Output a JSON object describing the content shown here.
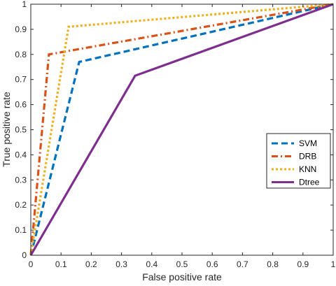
{
  "chart_data": {
    "type": "line",
    "xlabel": "False positive rate",
    "ylabel": "True positive rate",
    "xlim": [
      0,
      1
    ],
    "ylim": [
      0,
      1
    ],
    "x_ticks": [
      "0",
      "0.1",
      "0.2",
      "0.3",
      "0.4",
      "0.5",
      "0.6",
      "0.7",
      "0.8",
      "0.9",
      "1"
    ],
    "y_ticks": [
      "0",
      "0.1",
      "0.2",
      "0.3",
      "0.4",
      "0.5",
      "0.6",
      "0.7",
      "0.8",
      "0.9",
      "1"
    ],
    "grid": false,
    "legend_position": "right",
    "series": [
      {
        "name": "SVM",
        "color": "#0072BD",
        "dash": "dashed",
        "points": [
          [
            0,
            0
          ],
          [
            0.16,
            0.77
          ],
          [
            1,
            1
          ]
        ]
      },
      {
        "name": "DRB",
        "color": "#D95319",
        "dash": "dash-dot",
        "points": [
          [
            0,
            0
          ],
          [
            0.06,
            0.8
          ],
          [
            1,
            1
          ]
        ]
      },
      {
        "name": "KNN",
        "color": "#EDB120",
        "dash": "dotted",
        "points": [
          [
            0,
            0
          ],
          [
            0.125,
            0.91
          ],
          [
            1,
            1
          ]
        ]
      },
      {
        "name": "Dtree",
        "color": "#7E2F8E",
        "dash": "solid",
        "points": [
          [
            0,
            0
          ],
          [
            0.345,
            0.715
          ],
          [
            1,
            1
          ]
        ]
      }
    ]
  }
}
